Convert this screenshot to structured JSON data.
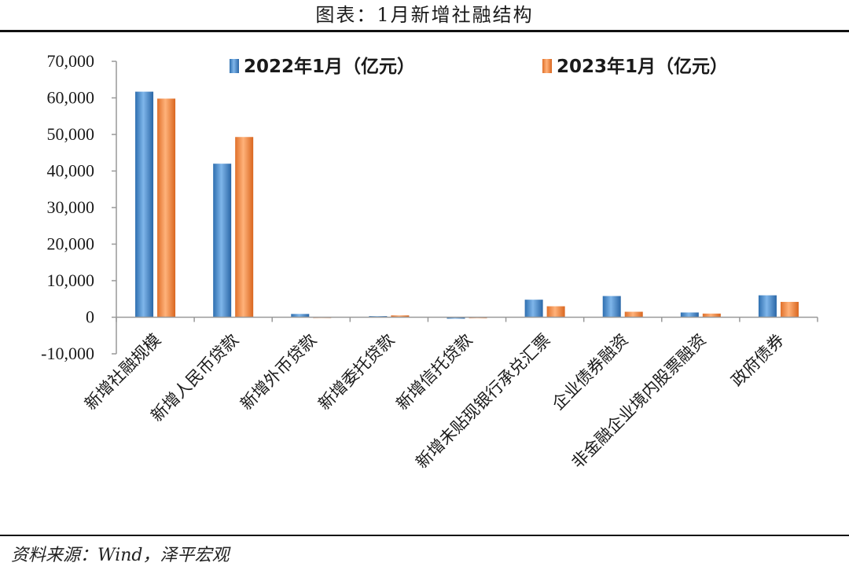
{
  "title": "图表：1月新增社融结构",
  "source": "资料来源：Wind，泽平宏观",
  "colors": {
    "series1": "#4a8fd0",
    "series2": "#f08a3c"
  },
  "chart_data": {
    "type": "bar",
    "categories": [
      "新增社融规模",
      "新增人民币贷款",
      "新增外币贷款",
      "新增委托贷款",
      "新增信托贷款",
      "新增未贴现银行承兑汇票",
      "企业债券融资",
      "非金融企业境内股票融资",
      "政府债券"
    ],
    "series": [
      {
        "name": "2022年1月（亿元）",
        "values": [
          61700,
          42000,
          900,
          300,
          -400,
          4800,
          5800,
          1300,
          6000
        ]
      },
      {
        "name": "2023年1月（亿元）",
        "values": [
          59800,
          49300,
          100,
          500,
          60,
          3000,
          1500,
          1000,
          4200
        ]
      }
    ],
    "ylim": [
      -10000,
      70000
    ],
    "yticks": [
      -10000,
      0,
      10000,
      20000,
      30000,
      40000,
      50000,
      60000,
      70000
    ],
    "ytick_labels": [
      "-10,000",
      "0",
      "10,000",
      "20,000",
      "30,000",
      "40,000",
      "50,000",
      "60,000",
      "70,000"
    ],
    "legend_position": "top",
    "grid": false
  }
}
